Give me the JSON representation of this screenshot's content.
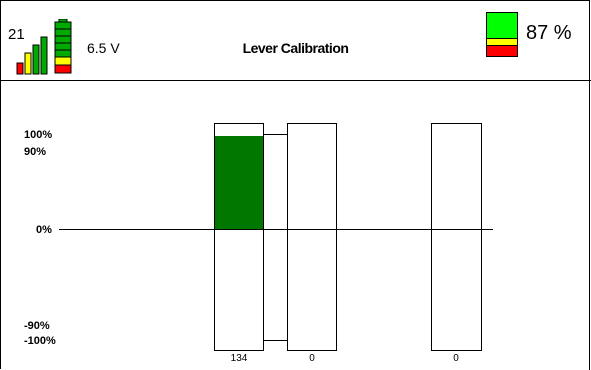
{
  "header": {
    "signal_value": "21",
    "voltage": "6.5 V",
    "title": "Lever Calibration",
    "battery_percent": "87 %",
    "battery_level": 0.87
  },
  "colors": {
    "fill_green": "#007800",
    "battery_green": "#00ff00",
    "battery_yellow": "#ffff00",
    "battery_red": "#ff0000"
  },
  "axis": {
    "labels": [
      "100%",
      "90%",
      "0%",
      "-90%",
      "-100%"
    ]
  },
  "levers": [
    {
      "value": "134",
      "level": 0.9
    },
    {
      "value": "0",
      "level": 0
    },
    {
      "value": "0",
      "level": 0
    }
  ]
}
